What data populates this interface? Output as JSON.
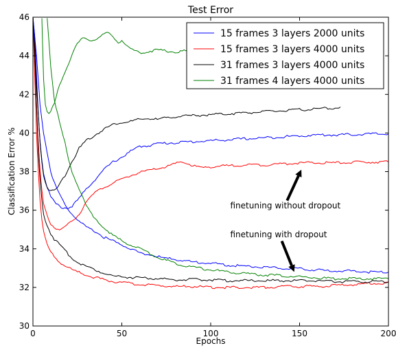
{
  "chart_data": {
    "type": "line",
    "title": "Test Error",
    "xlabel": "Epochs",
    "ylabel": "Classification Error %",
    "xlim": [
      0,
      200
    ],
    "ylim": [
      30,
      46
    ],
    "xticks": [
      "0",
      "50",
      "100",
      "150",
      "200"
    ],
    "yticks": [
      "30",
      "32",
      "34",
      "36",
      "38",
      "40",
      "42",
      "44",
      "46"
    ],
    "grid": false,
    "legend_position": "top-right",
    "series": [
      {
        "name": "15 frames 3 layers 2000 units",
        "color": "#0000ff",
        "points": [
          [
            0,
            46
          ],
          [
            1,
            45
          ],
          [
            2,
            43
          ],
          [
            3,
            41
          ],
          [
            4,
            39.6
          ],
          [
            5,
            38.6
          ],
          [
            6,
            37.9
          ],
          [
            8,
            37.2
          ],
          [
            10,
            36.7
          ],
          [
            13,
            36.3
          ],
          [
            16,
            36.15
          ],
          [
            20,
            36.1
          ],
          [
            23,
            36.3
          ],
          [
            26,
            36.6
          ],
          [
            30,
            37.1
          ],
          [
            35,
            37.6
          ],
          [
            40,
            38.1
          ],
          [
            45,
            38.5
          ],
          [
            50,
            38.75
          ],
          [
            55,
            39.05
          ],
          [
            60,
            39.3
          ],
          [
            65,
            39.35
          ],
          [
            70,
            39.45
          ],
          [
            80,
            39.5
          ],
          [
            90,
            39.55
          ],
          [
            100,
            39.6
          ],
          [
            110,
            39.65
          ],
          [
            120,
            39.7
          ],
          [
            130,
            39.75
          ],
          [
            140,
            39.8
          ],
          [
            150,
            39.85
          ],
          [
            160,
            39.9
          ],
          [
            170,
            39.9
          ],
          [
            180,
            39.92
          ],
          [
            190,
            39.95
          ],
          [
            200,
            39.95
          ]
        ]
      },
      {
        "name": "15 frames 3 layers 4000 units",
        "color": "#ff0000",
        "points": [
          [
            0,
            46
          ],
          [
            1,
            44.5
          ],
          [
            2,
            41.5
          ],
          [
            3,
            39.5
          ],
          [
            4,
            38
          ],
          [
            5,
            37
          ],
          [
            6,
            36.3
          ],
          [
            8,
            35.7
          ],
          [
            10,
            35.3
          ],
          [
            12,
            35.1
          ],
          [
            15,
            35
          ],
          [
            18,
            35.1
          ],
          [
            20,
            35.3
          ],
          [
            23,
            35.5
          ],
          [
            26,
            35.8
          ],
          [
            28,
            36.1
          ],
          [
            30,
            36.5
          ],
          [
            35,
            36.9
          ],
          [
            40,
            37.2
          ],
          [
            45,
            37.4
          ],
          [
            50,
            37.6
          ],
          [
            55,
            37.8
          ],
          [
            60,
            37.95
          ],
          [
            65,
            38.05
          ],
          [
            70,
            38.15
          ],
          [
            75,
            38.25
          ],
          [
            80,
            38.4
          ],
          [
            83,
            38.5
          ],
          [
            86,
            38.45
          ],
          [
            90,
            38.3
          ],
          [
            95,
            38.2
          ],
          [
            100,
            38.25
          ],
          [
            110,
            38.3
          ],
          [
            120,
            38.35
          ],
          [
            130,
            38.35
          ],
          [
            140,
            38.4
          ],
          [
            150,
            38.45
          ],
          [
            160,
            38.45
          ],
          [
            170,
            38.45
          ],
          [
            180,
            38.48
          ],
          [
            190,
            38.5
          ],
          [
            200,
            38.5
          ]
        ]
      },
      {
        "name": "31 frames 3 layers 4000 units",
        "color": "#000000",
        "points": [
          [
            0,
            46
          ],
          [
            1,
            44.5
          ],
          [
            2,
            42.5
          ],
          [
            3,
            41
          ],
          [
            4,
            39.5
          ],
          [
            5,
            38.5
          ],
          [
            6,
            37.8
          ],
          [
            8,
            37.2
          ],
          [
            10,
            37
          ],
          [
            12,
            37
          ],
          [
            14,
            37.2
          ],
          [
            16,
            37.5
          ],
          [
            18,
            37.8
          ],
          [
            20,
            38.2
          ],
          [
            23,
            38.7
          ],
          [
            26,
            39.2
          ],
          [
            30,
            39.6
          ],
          [
            35,
            39.9
          ],
          [
            40,
            40.2
          ],
          [
            45,
            40.45
          ],
          [
            50,
            40.55
          ],
          [
            55,
            40.6
          ],
          [
            60,
            40.7
          ],
          [
            65,
            40.75
          ],
          [
            70,
            40.7
          ],
          [
            80,
            40.85
          ],
          [
            90,
            40.9
          ],
          [
            100,
            40.95
          ],
          [
            110,
            41
          ],
          [
            120,
            41.05
          ],
          [
            130,
            41.1
          ],
          [
            140,
            41.15
          ],
          [
            150,
            41.2
          ],
          [
            160,
            41.25
          ],
          [
            170,
            41.3
          ],
          [
            173,
            41.35
          ]
        ]
      },
      {
        "name": "31 frames 4 layers 4000 units",
        "color": "#008000",
        "points": [
          [
            5,
            46
          ],
          [
            6,
            42.8
          ],
          [
            7,
            41.5
          ],
          [
            8,
            41.1
          ],
          [
            9,
            41
          ],
          [
            10,
            41.1
          ],
          [
            12,
            41.5
          ],
          [
            14,
            42.2
          ],
          [
            16,
            42.7
          ],
          [
            18,
            43.2
          ],
          [
            20,
            43.6
          ],
          [
            22,
            44.1
          ],
          [
            25,
            44.6
          ],
          [
            28,
            44.9
          ],
          [
            30,
            44.85
          ],
          [
            33,
            44.8
          ],
          [
            36,
            44.9
          ],
          [
            40,
            45.1
          ],
          [
            42,
            45.2
          ],
          [
            45,
            45
          ],
          [
            48,
            44.7
          ],
          [
            50,
            44.8
          ],
          [
            53,
            44.5
          ],
          [
            56,
            44.3
          ],
          [
            60,
            44.2
          ],
          [
            63,
            44.15
          ],
          [
            66,
            44.25
          ],
          [
            70,
            44.3
          ],
          [
            75,
            44.25
          ],
          [
            80,
            44.2
          ],
          [
            85,
            44.25
          ],
          [
            90,
            44.3
          ]
        ]
      },
      {
        "name": "",
        "color": "#0000ff",
        "points": [
          [
            0,
            46
          ],
          [
            2,
            44
          ],
          [
            4,
            41.5
          ],
          [
            6,
            40
          ],
          [
            8,
            39
          ],
          [
            10,
            38
          ],
          [
            12,
            37.4
          ],
          [
            15,
            36.8
          ],
          [
            18,
            36.3
          ],
          [
            20,
            36
          ],
          [
            25,
            35.5
          ],
          [
            30,
            35.1
          ],
          [
            35,
            34.9
          ],
          [
            40,
            34.6
          ],
          [
            45,
            34.4
          ],
          [
            50,
            34.2
          ],
          [
            55,
            34
          ],
          [
            60,
            33.8
          ],
          [
            65,
            33.7
          ],
          [
            70,
            33.6
          ],
          [
            75,
            33.5
          ],
          [
            80,
            33.45
          ],
          [
            85,
            33.4
          ],
          [
            90,
            33.3
          ],
          [
            95,
            33.3
          ],
          [
            100,
            33.25
          ],
          [
            110,
            33.15
          ],
          [
            120,
            33.1
          ],
          [
            130,
            33.05
          ],
          [
            140,
            33
          ],
          [
            150,
            32.95
          ],
          [
            160,
            32.9
          ],
          [
            170,
            32.85
          ],
          [
            180,
            32.85
          ],
          [
            190,
            32.8
          ],
          [
            200,
            32.8
          ]
        ]
      },
      {
        "name": "",
        "color": "#ff0000",
        "points": [
          [
            0,
            46
          ],
          [
            1,
            43
          ],
          [
            2,
            40
          ],
          [
            3,
            38
          ],
          [
            4,
            36.5
          ],
          [
            5,
            35.5
          ],
          [
            6,
            34.9
          ],
          [
            8,
            34.2
          ],
          [
            10,
            33.8
          ],
          [
            15,
            33.3
          ],
          [
            20,
            33
          ],
          [
            25,
            32.8
          ],
          [
            30,
            32.65
          ],
          [
            35,
            32.5
          ],
          [
            40,
            32.4
          ],
          [
            45,
            32.3
          ],
          [
            50,
            32.25
          ],
          [
            60,
            32.15
          ],
          [
            70,
            32.1
          ],
          [
            80,
            32.05
          ],
          [
            90,
            32.05
          ],
          [
            100,
            32
          ],
          [
            110,
            32
          ],
          [
            120,
            32
          ],
          [
            130,
            32
          ],
          [
            140,
            32.05
          ],
          [
            150,
            32.05
          ],
          [
            160,
            32.05
          ],
          [
            170,
            32.1
          ],
          [
            180,
            32.15
          ],
          [
            190,
            32.2
          ],
          [
            200,
            32.25
          ]
        ]
      },
      {
        "name": "",
        "color": "#000000",
        "points": [
          [
            0,
            46
          ],
          [
            1,
            44
          ],
          [
            2,
            41.5
          ],
          [
            3,
            39
          ],
          [
            4,
            37.5
          ],
          [
            5,
            36.5
          ],
          [
            6,
            35.8
          ],
          [
            8,
            35.2
          ],
          [
            10,
            34.8
          ],
          [
            12,
            34.5
          ],
          [
            15,
            34.2
          ],
          [
            20,
            33.7
          ],
          [
            25,
            33.3
          ],
          [
            30,
            33.1
          ],
          [
            35,
            32.9
          ],
          [
            40,
            32.75
          ],
          [
            45,
            32.6
          ],
          [
            50,
            32.55
          ],
          [
            60,
            32.5
          ],
          [
            70,
            32.45
          ],
          [
            80,
            32.4
          ],
          [
            90,
            32.4
          ],
          [
            100,
            32.4
          ],
          [
            110,
            32.35
          ],
          [
            120,
            32.35
          ],
          [
            130,
            32.35
          ],
          [
            140,
            32.35
          ],
          [
            150,
            32.35
          ],
          [
            160,
            32.35
          ],
          [
            170,
            32.3
          ],
          [
            180,
            32.3
          ],
          [
            190,
            32.3
          ],
          [
            200,
            32.3
          ]
        ]
      },
      {
        "name": "",
        "color": "#008000",
        "points": [
          [
            8,
            46
          ],
          [
            10,
            43.5
          ],
          [
            12,
            41.8
          ],
          [
            15,
            40.5
          ],
          [
            18,
            39.5
          ],
          [
            20,
            38.6
          ],
          [
            22,
            38
          ],
          [
            25,
            37.3
          ],
          [
            28,
            36.7
          ],
          [
            30,
            36.2
          ],
          [
            35,
            35.5
          ],
          [
            40,
            35.1
          ],
          [
            45,
            34.7
          ],
          [
            50,
            34.4
          ],
          [
            55,
            34.2
          ],
          [
            60,
            34
          ],
          [
            65,
            33.8
          ],
          [
            70,
            33.55
          ],
          [
            75,
            33.4
          ],
          [
            80,
            33.25
          ],
          [
            90,
            33.05
          ],
          [
            100,
            32.9
          ],
          [
            110,
            32.8
          ],
          [
            120,
            32.7
          ],
          [
            130,
            32.65
          ],
          [
            140,
            32.6
          ],
          [
            150,
            32.55
          ],
          [
            160,
            32.5
          ],
          [
            170,
            32.45
          ],
          [
            180,
            32.45
          ],
          [
            190,
            32.45
          ],
          [
            200,
            32.45
          ]
        ]
      }
    ],
    "annotations": [
      {
        "text": "finetuning without dropout",
        "x": 111,
        "y": 36.1,
        "arrow_from": [
          143,
          36.5
        ],
        "arrow_to": [
          151,
          38.1
        ]
      },
      {
        "text": "finetuning with dropout",
        "x": 111,
        "y": 34.6,
        "arrow_from": [
          140,
          34.4
        ],
        "arrow_to": [
          147,
          32.8
        ]
      }
    ]
  }
}
